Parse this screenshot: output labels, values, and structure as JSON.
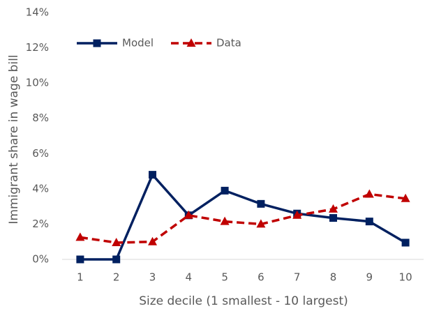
{
  "chart_data": {
    "type": "line",
    "x_label": "Size decile (1 smallest - 10 largest)",
    "y_label": "Immigrant share in wage bill",
    "categories": [
      "1",
      "2",
      "3",
      "4",
      "5",
      "6",
      "7",
      "8",
      "9",
      "10"
    ],
    "series": [
      {
        "name": "Model",
        "color": "#002060",
        "dash": "solid",
        "marker": "square",
        "values": [
          0,
          0,
          4.8,
          2.5,
          3.9,
          3.15,
          2.6,
          2.35,
          2.15,
          0.95
        ]
      },
      {
        "name": "Data",
        "color": "#c00000",
        "dash": "dashed",
        "marker": "triangle",
        "values": [
          1.25,
          0.95,
          1.0,
          2.5,
          2.15,
          2.0,
          2.5,
          2.85,
          3.7,
          3.45
        ]
      }
    ],
    "ylim": [
      0,
      14
    ],
    "yticks": [
      {
        "value": 0,
        "label": "0%"
      },
      {
        "value": 2,
        "label": "2%"
      },
      {
        "value": 4,
        "label": "4%"
      },
      {
        "value": 6,
        "label": "6%"
      },
      {
        "value": 8,
        "label": "8%"
      },
      {
        "value": 10,
        "label": "10%"
      },
      {
        "value": 12,
        "label": "12%"
      },
      {
        "value": 14,
        "label": "14%"
      }
    ],
    "grid": false,
    "legend": "top-left"
  }
}
